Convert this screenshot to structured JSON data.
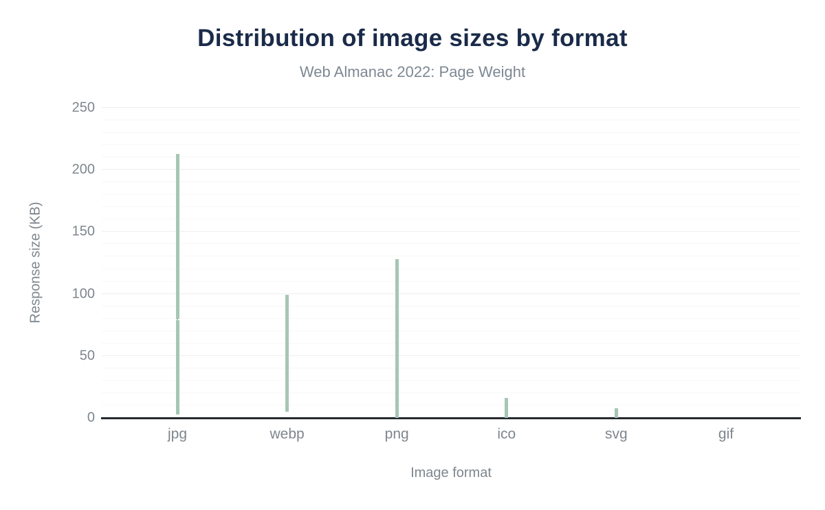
{
  "chart_data": {
    "type": "boxplot",
    "title": "Distribution of image sizes by format",
    "subtitle": "Web Almanac 2022: Page Weight",
    "xlabel": "Image format",
    "ylabel": "Response size (KB)",
    "ylim": [
      0,
      250
    ],
    "y_ticks": [
      0,
      50,
      100,
      150,
      200,
      250
    ],
    "y_minor_step": 10,
    "grid": true,
    "unit": "KB",
    "whisker_range": "10th-90th percentile",
    "box_range": "25th-75th percentile",
    "categories": [
      "jpg",
      "webp",
      "png",
      "ico",
      "svg",
      "gif"
    ],
    "series": [
      {
        "label": "jpg",
        "p10": 3,
        "p25": 23,
        "median": 79,
        "p75": 80,
        "p90": 213
      },
      {
        "label": "webp",
        "p10": 5,
        "p25": 13,
        "median": null,
        "p75": 40,
        "p90": 99
      },
      {
        "label": "png",
        "p10": 0,
        "p25": 3,
        "median": null,
        "p75": 26,
        "p90": 128
      },
      {
        "label": "ico",
        "p10": 0,
        "p25": 1,
        "median": null,
        "p75": 5,
        "p90": 16
      },
      {
        "label": "svg",
        "p10": 0,
        "p25": 1,
        "median": null,
        "p75": 3,
        "p90": 8
      },
      {
        "label": "gif",
        "p10": 0,
        "p25": 0,
        "median": null,
        "p75": 0,
        "p90": 0
      }
    ]
  },
  "colors": {
    "title": "#1a2b49",
    "subtitle": "#7e8893",
    "axis_text": "#7d868d",
    "box_fill": "#a5c6b4",
    "median_line": "#ffffff",
    "axis_line": "#24292e",
    "grid_major": "#ededed",
    "grid_minor": "#f7f7f7",
    "background": "#ffffff"
  }
}
